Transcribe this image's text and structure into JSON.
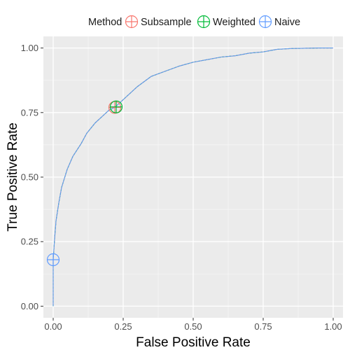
{
  "chart_data": {
    "type": "line",
    "xlabel": "False Positive Rate",
    "ylabel": "True Positive Rate",
    "xlim": [
      -0.035,
      1.035
    ],
    "ylim": [
      -0.045,
      1.045
    ],
    "x_ticks": [
      "0.00",
      "0.25",
      "0.50",
      "0.75",
      "1.00"
    ],
    "y_ticks": [
      "0.00",
      "0.25",
      "0.50",
      "0.75",
      "1.00"
    ],
    "grid": true,
    "legend": {
      "title": "Method",
      "position": "top",
      "entries": [
        "Subsample",
        "Weighted",
        "Naive"
      ]
    },
    "series": [
      {
        "name": "Subsample",
        "color": "#F8766D",
        "x": [
          0.0,
          0.0,
          0.005,
          0.01,
          0.02,
          0.03,
          0.05,
          0.07,
          0.1,
          0.12,
          0.15,
          0.18,
          0.2,
          0.22,
          0.25,
          0.3,
          0.35,
          0.4,
          0.45,
          0.5,
          0.55,
          0.6,
          0.65,
          0.7,
          0.75,
          0.8,
          0.85,
          0.9,
          0.95,
          1.0
        ],
        "y": [
          0.0,
          0.18,
          0.26,
          0.33,
          0.4,
          0.46,
          0.53,
          0.58,
          0.63,
          0.67,
          0.71,
          0.74,
          0.76,
          0.77,
          0.8,
          0.85,
          0.89,
          0.91,
          0.93,
          0.945,
          0.955,
          0.965,
          0.97,
          0.98,
          0.985,
          0.995,
          0.998,
          0.999,
          1.0,
          1.0
        ],
        "point": {
          "x": 0.22,
          "y": 0.77
        }
      },
      {
        "name": "Weighted",
        "color": "#00BA38",
        "x": [
          0.0,
          0.0,
          0.005,
          0.01,
          0.02,
          0.03,
          0.05,
          0.07,
          0.1,
          0.12,
          0.15,
          0.18,
          0.2,
          0.22,
          0.25,
          0.3,
          0.35,
          0.4,
          0.45,
          0.5,
          0.55,
          0.6,
          0.65,
          0.7,
          0.75,
          0.8,
          0.85,
          0.9,
          0.95,
          1.0
        ],
        "y": [
          0.0,
          0.18,
          0.26,
          0.33,
          0.4,
          0.46,
          0.53,
          0.58,
          0.63,
          0.67,
          0.71,
          0.74,
          0.76,
          0.77,
          0.8,
          0.85,
          0.89,
          0.91,
          0.93,
          0.945,
          0.955,
          0.965,
          0.97,
          0.98,
          0.985,
          0.995,
          0.998,
          0.999,
          1.0,
          1.0
        ],
        "point": {
          "x": 0.225,
          "y": 0.772
        }
      },
      {
        "name": "Naive",
        "color": "#619CFF",
        "x": [
          0.0,
          0.0,
          0.005,
          0.01,
          0.02,
          0.03,
          0.05,
          0.07,
          0.1,
          0.12,
          0.15,
          0.18,
          0.2,
          0.22,
          0.25,
          0.3,
          0.35,
          0.4,
          0.45,
          0.5,
          0.55,
          0.6,
          0.65,
          0.7,
          0.75,
          0.8,
          0.85,
          0.9,
          0.95,
          1.0
        ],
        "y": [
          0.0,
          0.18,
          0.26,
          0.33,
          0.4,
          0.46,
          0.53,
          0.58,
          0.63,
          0.67,
          0.71,
          0.74,
          0.76,
          0.77,
          0.8,
          0.85,
          0.89,
          0.91,
          0.93,
          0.945,
          0.955,
          0.965,
          0.97,
          0.98,
          0.985,
          0.995,
          0.998,
          0.999,
          1.0,
          1.0
        ],
        "point": {
          "x": 0.0,
          "y": 0.18
        }
      }
    ]
  }
}
